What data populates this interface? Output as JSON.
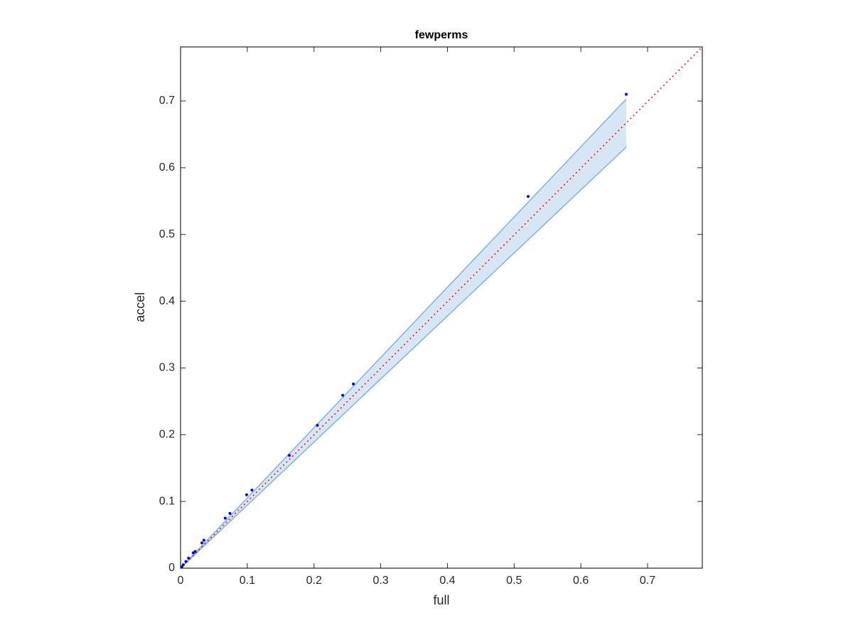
{
  "chart_data": {
    "type": "scatter",
    "title": "fewperms",
    "xlabel": "full",
    "ylabel": "accel",
    "xlim": [
      0,
      0.782
    ],
    "ylim": [
      0,
      0.781
    ],
    "xticks": [
      0,
      0.1,
      0.2,
      0.3,
      0.4,
      0.5,
      0.6,
      0.7
    ],
    "yticks": [
      0,
      0.1,
      0.2,
      0.3,
      0.4,
      0.5,
      0.6,
      0.7
    ],
    "color": "#0000ff",
    "x": [
      0.668,
      0.521,
      0.259,
      0.243,
      0.205,
      0.163,
      0.107,
      0.099,
      0.074,
      0.067,
      0.035,
      0.032,
      0.022,
      0.019,
      0.012,
      0.008,
      0.004,
      0.002
    ],
    "y": [
      0.71,
      0.557,
      0.276,
      0.259,
      0.214,
      0.169,
      0.117,
      0.11,
      0.082,
      0.075,
      0.042,
      0.038,
      0.025,
      0.023,
      0.015,
      0.01,
      0.005,
      0.002
    ],
    "band": {
      "x": [
        0,
        0.668
      ],
      "upper": [
        0,
        0.703
      ],
      "lower": [
        0,
        0.631
      ],
      "color": "#7fb4dc",
      "fill": "#d6e6f4"
    },
    "reference_line": {
      "x": [
        0,
        0.782
      ],
      "y": [
        0,
        0.781
      ],
      "color": "#ff0000"
    }
  }
}
